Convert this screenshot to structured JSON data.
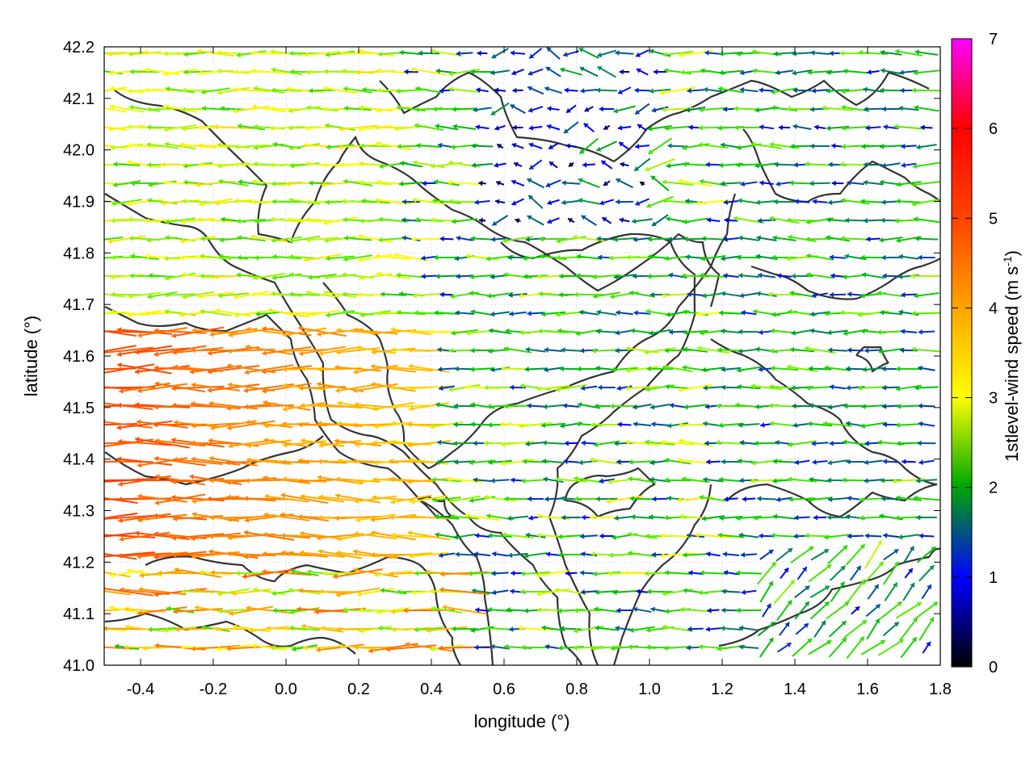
{
  "chart_data": {
    "type": "vector_field",
    "xlabel": "longitude (°)",
    "ylabel": "latitude (°)",
    "xlim": [
      -0.5,
      1.8
    ],
    "ylim": [
      41.0,
      42.2
    ],
    "x_ticks": [
      "-0.4",
      "-0.2",
      "0.0",
      "0.2",
      "0.4",
      "0.6",
      "0.8",
      "1.0",
      "1.2",
      "1.4",
      "1.6",
      "1.8"
    ],
    "x_tick_values": [
      -0.4,
      -0.2,
      0.0,
      0.2,
      0.4,
      0.6,
      0.8,
      1.0,
      1.2,
      1.4,
      1.6,
      1.8
    ],
    "y_ticks": [
      "41.0",
      "41.1",
      "41.2",
      "41.3",
      "41.4",
      "41.5",
      "41.6",
      "41.7",
      "41.8",
      "41.9",
      "42.0",
      "42.1",
      "42.2"
    ],
    "y_tick_values": [
      41.0,
      41.1,
      41.2,
      41.3,
      41.4,
      41.5,
      41.6,
      41.7,
      41.8,
      41.9,
      42.0,
      42.1,
      42.2
    ],
    "colorbar": {
      "label_main": "1stlevel-wind speed (m s",
      "label_sup": "-1",
      "label_end": ")",
      "range": [
        0,
        7
      ],
      "ticks": [
        "0",
        "1",
        "2",
        "3",
        "4",
        "5",
        "6",
        "7"
      ],
      "colormap": [
        "#000000",
        "#0000ff",
        "#00aa00",
        "#ffff00",
        "#ffa500",
        "#ff0000",
        "#ff00ff"
      ]
    },
    "grid": true,
    "contour_color": "#333333",
    "description_note": "Approximate reconstruction of wind vectors (mostly westward) colored by speed over terrain contours."
  }
}
